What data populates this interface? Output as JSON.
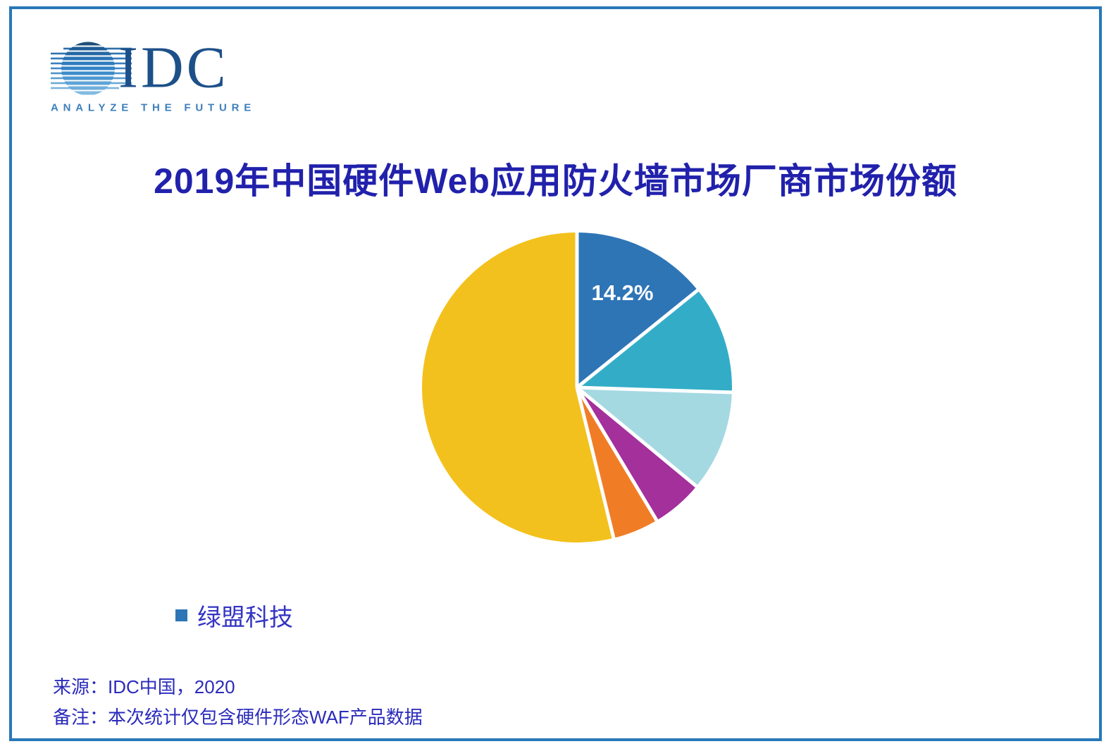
{
  "colors": {
    "frame_border": "#2878B8",
    "title_text": "#2121AC",
    "footer_text": "#2B2BBC",
    "brand_blue": "#1D5089",
    "accent_blue": "#2E75B6"
  },
  "logo": {
    "brand": "IDC",
    "tagline": "ANALYZE THE FUTURE"
  },
  "title": {
    "text": "2019年中国硬件Web应用防火墙市场厂商市场份额",
    "color": "#2121AC"
  },
  "chart_data": {
    "type": "pie",
    "title": "2019年中国硬件Web应用防火墙市场厂商市场份额",
    "start_angle_deg": 0,
    "direction": "clockwise",
    "slices": [
      {
        "name": "绿盟科技",
        "value": 14.2,
        "label": "14.2%",
        "color": "#2E75B6"
      },
      {
        "name": "",
        "value": 11.3,
        "label": "",
        "color": "#33ADC7"
      },
      {
        "name": "",
        "value": 10.5,
        "label": "",
        "color": "#A5D9E2"
      },
      {
        "name": "",
        "value": 5.4,
        "label": "",
        "color": "#A3309B"
      },
      {
        "name": "",
        "value": 4.8,
        "label": "",
        "color": "#F07D26"
      },
      {
        "name": "",
        "value": 53.8,
        "label": "",
        "color": "#F3C11D"
      }
    ],
    "separator": {
      "color": "#FFFFFF",
      "width": 5
    },
    "label_style": {
      "color": "#FFFFFF",
      "radius_ratio": 0.68
    },
    "legend_position": "bottom-left"
  },
  "legend": {
    "items": [
      {
        "label": "绿盟科技",
        "color": "#2E75B6"
      }
    ]
  },
  "footer": {
    "source": "来源：IDC中国，2020",
    "note": "备注：本次统计仅包含硬件形态WAF产品数据"
  }
}
